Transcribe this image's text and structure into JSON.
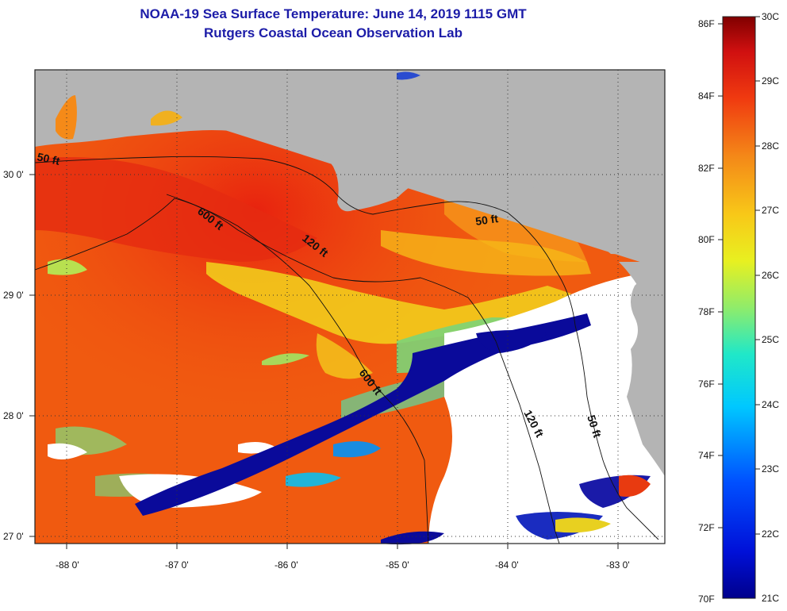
{
  "title_line1": "NOAA-19 Sea Surface Temperature:  June 14, 2019 1115 GMT",
  "title_line2": "Rutgers Coastal Ocean Observation Lab",
  "map": {
    "longitude_labels": [
      "-88 0'",
      "-87 0'",
      "-86 0'",
      "-85 0'",
      "-84 0'",
      "-83 0'"
    ],
    "latitude_labels": [
      "30 0'",
      "29 0'",
      "28 0'",
      "27 0'"
    ],
    "contour_labels": [
      "50 ft",
      "600 ft",
      "120 ft",
      "50 ft",
      "600 ft",
      "120 ft",
      "50 ft"
    ],
    "colors": {
      "land": "#b4b4b4",
      "cloud": "#ffffff",
      "warm_sea": "#f05a10"
    }
  },
  "colorbar": {
    "fahrenheit_labels": [
      "86F",
      "84F",
      "82F",
      "80F",
      "78F",
      "76F",
      "74F",
      "72F",
      "70F"
    ],
    "celsius_labels": [
      "30C",
      "29C",
      "28C",
      "27C",
      "26C",
      "25C",
      "24C",
      "23C",
      "22C",
      "21C"
    ]
  }
}
